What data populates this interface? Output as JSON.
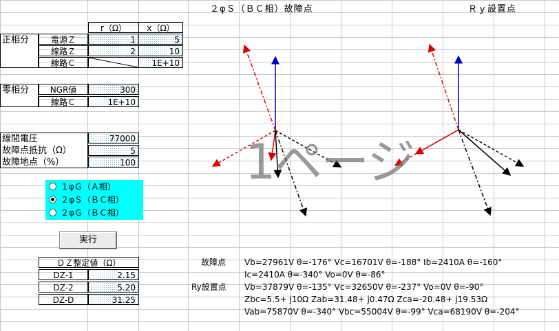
{
  "titles": {
    "fault": "２φＳ（ＢＣ相）故障点",
    "relay": "Ｒｙ設置点"
  },
  "table": {
    "col_r": "r（Ω）",
    "col_x": "x（Ω）",
    "pos_seq": "正相分",
    "zero_seq": "零相分",
    "rows": [
      {
        "label": "電源Ｚ",
        "r": "1",
        "x": "5"
      },
      {
        "label": "線路Ｚ",
        "r": "2",
        "x": "10"
      },
      {
        "label": "線路Ｃ",
        "x": "1E+10"
      }
    ],
    "zero_rows": [
      {
        "label": "NGR値",
        "r": "300"
      },
      {
        "label": "線路Ｃ",
        "r": "1E+10"
      }
    ]
  },
  "params": [
    {
      "label": "線間電圧",
      "value": "77000"
    },
    {
      "label": "故障点抵抗（Ω）",
      "value": "5"
    },
    {
      "label": "故障地点（%）",
      "value": "100"
    }
  ],
  "fault_options": [
    "１φＧ（Ａ相）",
    "２φＳ（ＢＣ相）",
    "２φＧ（ＢＣ相）"
  ],
  "selected_option": 1,
  "run_label": "実行",
  "dz": {
    "header": "ＤＺ整定値（Ω）",
    "rows": [
      {
        "label": "DZ-1",
        "value": "2.15"
      },
      {
        "label": "DZ-2",
        "value": "5.20"
      },
      {
        "label": "DZ-D",
        "value": "31.25"
      }
    ]
  },
  "watermark": "1ページ",
  "results": {
    "fault_label": "故障点",
    "fault_line1": "Vb=27961V θ=-176° Vc=16701V θ=-188° Ib=2410A θ=-160°",
    "fault_line2": "Ic=2410A θ=-340° Vo=0V θ=-86°",
    "relay_label": "Ry設置点",
    "relay_line1": "Vb=37879V θ=-135° Vc=32650V θ=-237° Vo=0V θ=-90°",
    "relay_line2": "Zbc=5.5+ j10Ω  Zab=31.48+ j0.47Ω  Zca=-20.48+ j19.53Ω",
    "relay_line3": "Vab=75870V θ=-340° Vbc=55004V θ=-99° Vca=68190V θ=-204°"
  },
  "colors": {
    "blue": "#0000cc",
    "red": "#dd0000",
    "black": "#000000",
    "cyan": "#00ffff"
  }
}
